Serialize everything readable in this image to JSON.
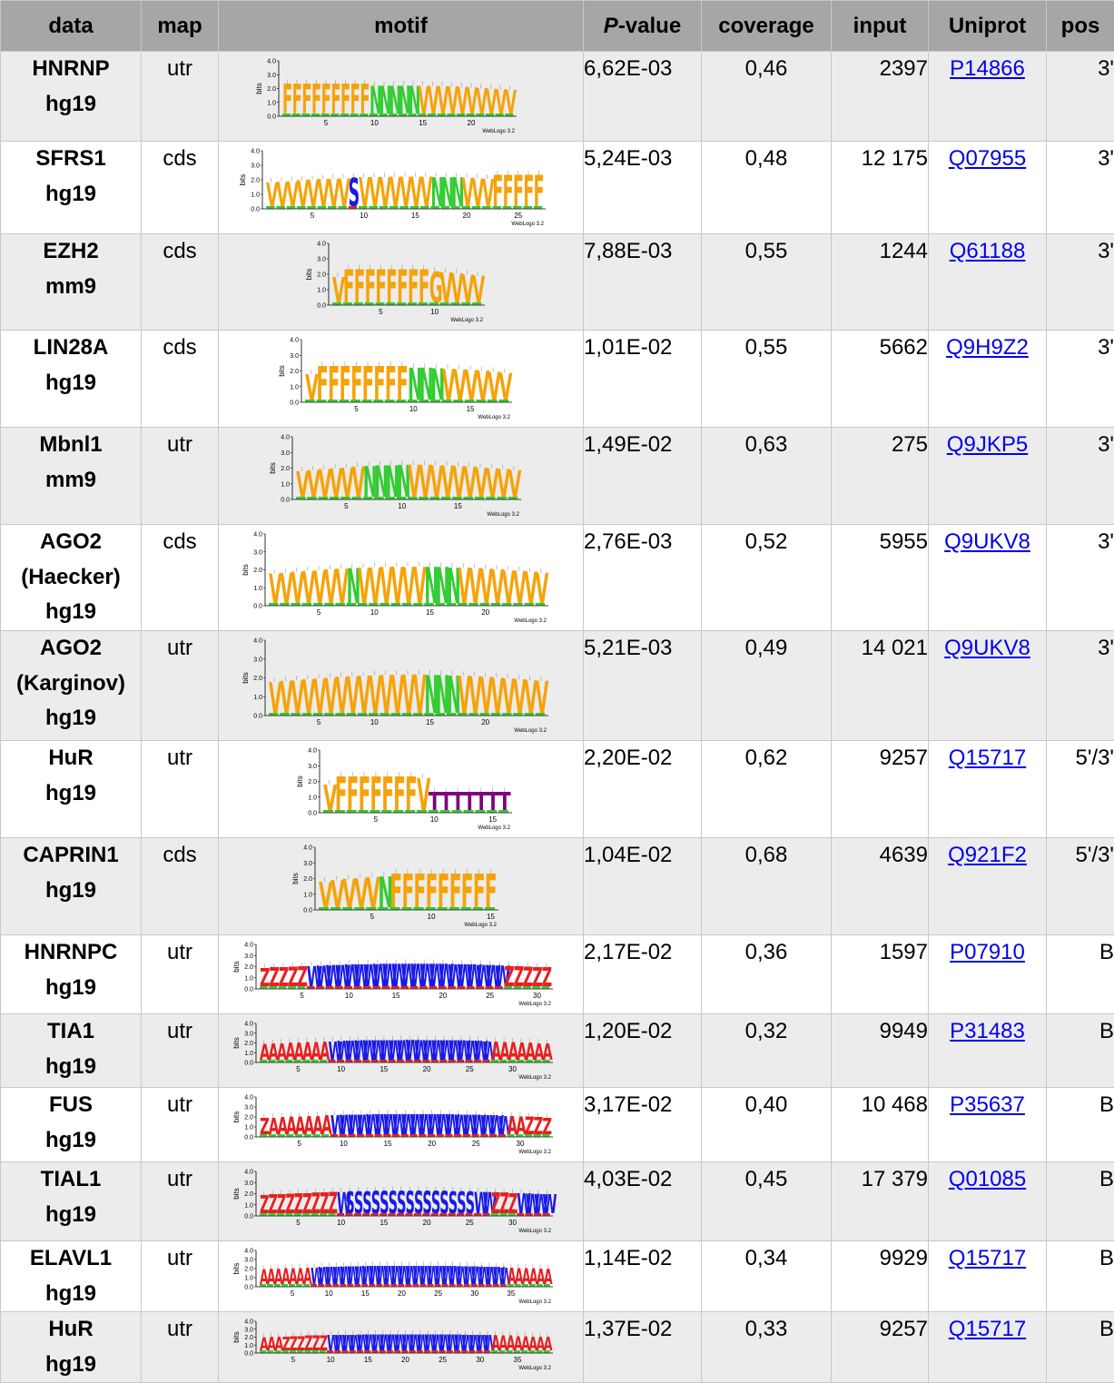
{
  "headers": {
    "data": "data",
    "map": "map",
    "motif": "motif",
    "pvalue_prefix": "P",
    "pvalue_suffix": "-value",
    "coverage": "coverage",
    "input": "input",
    "uniprot": "Uniprot",
    "pos": "pos"
  },
  "rows": [
    {
      "data_lines": [
        "HNRNP",
        "hg19"
      ],
      "map": "utr",
      "pvalue": "6,62E-03",
      "coverage": "0,46",
      "input": "2397",
      "uniprot": "P14866",
      "pos": "3'",
      "motif": {
        "letters": "FFFFFFFFFNNNNNVVVVVVVVVV",
        "ticks": [
          "5",
          "10",
          "15",
          "20"
        ],
        "credit": "WebLogo 3.2",
        "y_ticks": [
          "4.0",
          "3.0",
          "2.0",
          "1.0",
          "0.0"
        ],
        "y_label": "bits"
      }
    },
    {
      "data_lines": [
        "SFRS1",
        "hg19"
      ],
      "map": "cds",
      "pvalue": "5,24E-03",
      "coverage": "0,48",
      "input": "12 175",
      "uniprot": "Q07955",
      "pos": "3'",
      "motif": {
        "letters": "VVVVVVVVSVVVVVVVNNNVVVFFFFF",
        "ticks": [
          "5",
          "10",
          "15",
          "20",
          "25"
        ],
        "credit": "WebLogo 3.2",
        "y_ticks": [
          "4.0",
          "3.0",
          "2.0",
          "1.0",
          "0.0"
        ],
        "y_label": "bits"
      }
    },
    {
      "data_lines": [
        "EZH2",
        "mm9"
      ],
      "map": "cds",
      "pvalue": "7,88E-03",
      "coverage": "0,55",
      "input": "1244",
      "uniprot": "Q61188",
      "pos": "3'",
      "motif": {
        "letters": "VFFFFFFFFGVVVV",
        "ticks": [
          "5",
          "10"
        ],
        "credit": "WebLogo 3.2",
        "y_ticks": [
          "4.0",
          "3.0",
          "2.0",
          "1.0",
          "0.0"
        ],
        "y_label": "bits"
      }
    },
    {
      "data_lines": [
        "LIN28A",
        "hg19"
      ],
      "map": "cds",
      "pvalue": "1,01E-02",
      "coverage": "0,55",
      "input": "5662",
      "uniprot": "Q9H9Z2",
      "pos": "3'",
      "motif": {
        "letters": "VFFFFFFFFNNNVVVVVV",
        "ticks": [
          "5",
          "10",
          "15"
        ],
        "credit": "WebLogo 3.2",
        "y_ticks": [
          "4.0",
          "3.0",
          "2.0",
          "1.0",
          "0.0"
        ],
        "y_label": "bits"
      }
    },
    {
      "data_lines": [
        "Mbnl1",
        "mm9"
      ],
      "map": "utr",
      "pvalue": "1,49E-02",
      "coverage": "0,63",
      "input": "275",
      "uniprot": "Q9JKP5",
      "pos": "3'",
      "motif": {
        "letters": "VVVVVVNNNNVVVVVVVVVV",
        "ticks": [
          "5",
          "10",
          "15"
        ],
        "credit": "WebLogo 3.2",
        "y_ticks": [
          "4.0",
          "3.0",
          "2.0",
          "1.0",
          "0.0"
        ],
        "y_label": "bits"
      }
    },
    {
      "data_lines": [
        "AGO2",
        "(Haecker)",
        "hg19"
      ],
      "map": "cds",
      "pvalue": "2,76E-03",
      "coverage": "0,52",
      "input": "5955",
      "uniprot": "Q9UKV8",
      "pos": "3'",
      "motif": {
        "letters": "VVVVVVVNVVVVVVNNNVVVVVVVV",
        "ticks": [
          "5",
          "10",
          "15",
          "20"
        ],
        "credit": "WebLogo 3.2",
        "y_ticks": [
          "4.0",
          "3.0",
          "2.0",
          "1.0",
          "0.0"
        ],
        "y_label": "bits"
      }
    },
    {
      "data_lines": [
        "AGO2",
        "(Karginov)",
        "hg19"
      ],
      "map": "utr",
      "pvalue": "5,21E-03",
      "coverage": "0,49",
      "input": "14 021",
      "uniprot": "Q9UKV8",
      "pos": "3'",
      "motif": {
        "letters": "VVVVVVVVVVVVVVNNNVVVVVVVV",
        "ticks": [
          "5",
          "10",
          "15",
          "20"
        ],
        "credit": "WebLogo 3.2",
        "y_ticks": [
          "4.0",
          "3.0",
          "2.0",
          "1.0",
          "0.0"
        ],
        "y_label": "bits"
      }
    },
    {
      "data_lines": [
        "HuR",
        "hg19"
      ],
      "map": "utr",
      "pvalue": "2,20E-02",
      "coverage": "0,62",
      "input": "9257",
      "uniprot": "Q15717",
      "pos": "5'/3'",
      "motif": {
        "letters": "VFFFFFFFVTTTTTTT",
        "ticks": [
          "5",
          "10",
          "15"
        ],
        "credit": "WebLogo 3.2",
        "y_ticks": [
          "4.0",
          "3.0",
          "2.0",
          "1.0",
          "0.0"
        ],
        "y_label": "bits"
      }
    },
    {
      "data_lines": [
        "CAPRIN1",
        "hg19"
      ],
      "map": "cds",
      "pvalue": "1,04E-02",
      "coverage": "0,68",
      "input": "4639",
      "uniprot": "Q921F2",
      "pos": "5'/3'",
      "motif": {
        "letters": "VVVVVNFFFFFFFFF",
        "ticks": [
          "5",
          "10",
          "15"
        ],
        "credit": "WebLogo 3.2",
        "y_ticks": [
          "4.0",
          "3.0",
          "2.0",
          "1.0",
          "0.0"
        ],
        "y_label": "bits"
      }
    },
    {
      "data_lines": [
        "HNRNPC",
        "hg19"
      ],
      "map": "utr",
      "pvalue": "2,17E-02",
      "coverage": "0,36",
      "input": "1597",
      "uniprot": "P07910",
      "pos": "B",
      "motif": {
        "letters": "ZZZZZWWWWWWWWWWWWWWWWWWWWWZZZZZ",
        "ticks": [
          "5",
          "10",
          "15",
          "20",
          "25",
          "30"
        ],
        "credit": "WebLogo 3.2",
        "y_ticks": [
          "4.0",
          "3.0",
          "2.0",
          "1.0",
          "0.0"
        ],
        "y_label": "bits"
      }
    },
    {
      "data_lines": [
        "TIA1",
        "hg19"
      ],
      "map": "utr",
      "pvalue": "1,20E-02",
      "coverage": "0,32",
      "input": "9949",
      "uniprot": "P31483",
      "pos": "B",
      "motif": {
        "letters": "AAAAAAAAWWWWWWWWWWWWWWWWWWWAAAAAAA",
        "ticks": [
          "5",
          "10",
          "15",
          "20",
          "25",
          "30"
        ],
        "credit": "WebLogo 3.2",
        "y_ticks": [
          "4.0",
          "3.0",
          "2.0",
          "1.0",
          "0.0"
        ],
        "y_label": "bits"
      }
    },
    {
      "data_lines": [
        "FUS",
        "hg19"
      ],
      "map": "utr",
      "pvalue": "3,17E-02",
      "coverage": "0,40",
      "input": "10 468",
      "uniprot": "P35637",
      "pos": "B",
      "motif": {
        "letters": "ZAAAAAAAWWWWWWWWWWWWWWWWWWWWAAZZZ",
        "ticks": [
          "5",
          "10",
          "15",
          "20",
          "25",
          "30"
        ],
        "credit": "WebLogo 3.2",
        "y_ticks": [
          "4.0",
          "3.0",
          "2.0",
          "1.0",
          "0.0"
        ],
        "y_label": "bits"
      }
    },
    {
      "data_lines": [
        "TIAL1",
        "hg19"
      ],
      "map": "utr",
      "pvalue": "4,03E-02",
      "coverage": "0,45",
      "input": "17 379",
      "uniprot": "Q01085",
      "pos": "B",
      "motif": {
        "letters": "ZZZZZZZZZWSSSSSSSSSSSSSSSWWZZZWWWW",
        "ticks": [
          "5",
          "10",
          "15",
          "20",
          "25",
          "30"
        ],
        "credit": "WebLogo 3.2",
        "y_ticks": [
          "4.0",
          "3.0",
          "2.0",
          "1.0",
          "0.0"
        ],
        "y_label": "bits"
      }
    },
    {
      "data_lines": [
        "ELAVL1",
        "hg19"
      ],
      "map": "utr",
      "pvalue": "1,14E-02",
      "coverage": "0,34",
      "input": "9929",
      "uniprot": "Q15717",
      "pos": "B",
      "motif": {
        "letters": "AAAAAAAWWWWWWWWWWWWWWWWWWWWWWWWWWWAAAAAA",
        "ticks": [
          "5",
          "10",
          "15",
          "20",
          "25",
          "30",
          "35"
        ],
        "credit": "WebLogo 3.2",
        "y_ticks": [
          "4.0",
          "3.0",
          "2.0",
          "1.0",
          "0.0"
        ],
        "y_label": "bits"
      }
    },
    {
      "data_lines": [
        "HuR",
        "hg19"
      ],
      "map": "utr",
      "pvalue": "1,37E-02",
      "coverage": "0,33",
      "input": "9257",
      "uniprot": "Q15717",
      "pos": "B",
      "motif": {
        "letters": "AAAZZZZZZWWWWWWWWWWWWWWWWWWWWWWAAAAAAAA",
        "ticks": [
          "5",
          "10",
          "15",
          "20",
          "25",
          "30",
          "35"
        ],
        "credit": "WebLogo 3.2",
        "y_ticks": [
          "4.0",
          "3.0",
          "2.0",
          "1.0",
          "0.0"
        ],
        "y_label": "bits"
      }
    }
  ],
  "colors": {
    "header_bg": "#a6a6a6",
    "row_shade": "#ececec",
    "link": "#0000ee",
    "logo_F": "#f5a30a",
    "logo_V": "#f5a30a",
    "logo_N": "#33cc33",
    "logo_T": "#800080",
    "logo_A": "#e62020",
    "logo_Z": "#e62020",
    "logo_W": "#1a1ae6",
    "logo_S": "#1a1ae6"
  }
}
